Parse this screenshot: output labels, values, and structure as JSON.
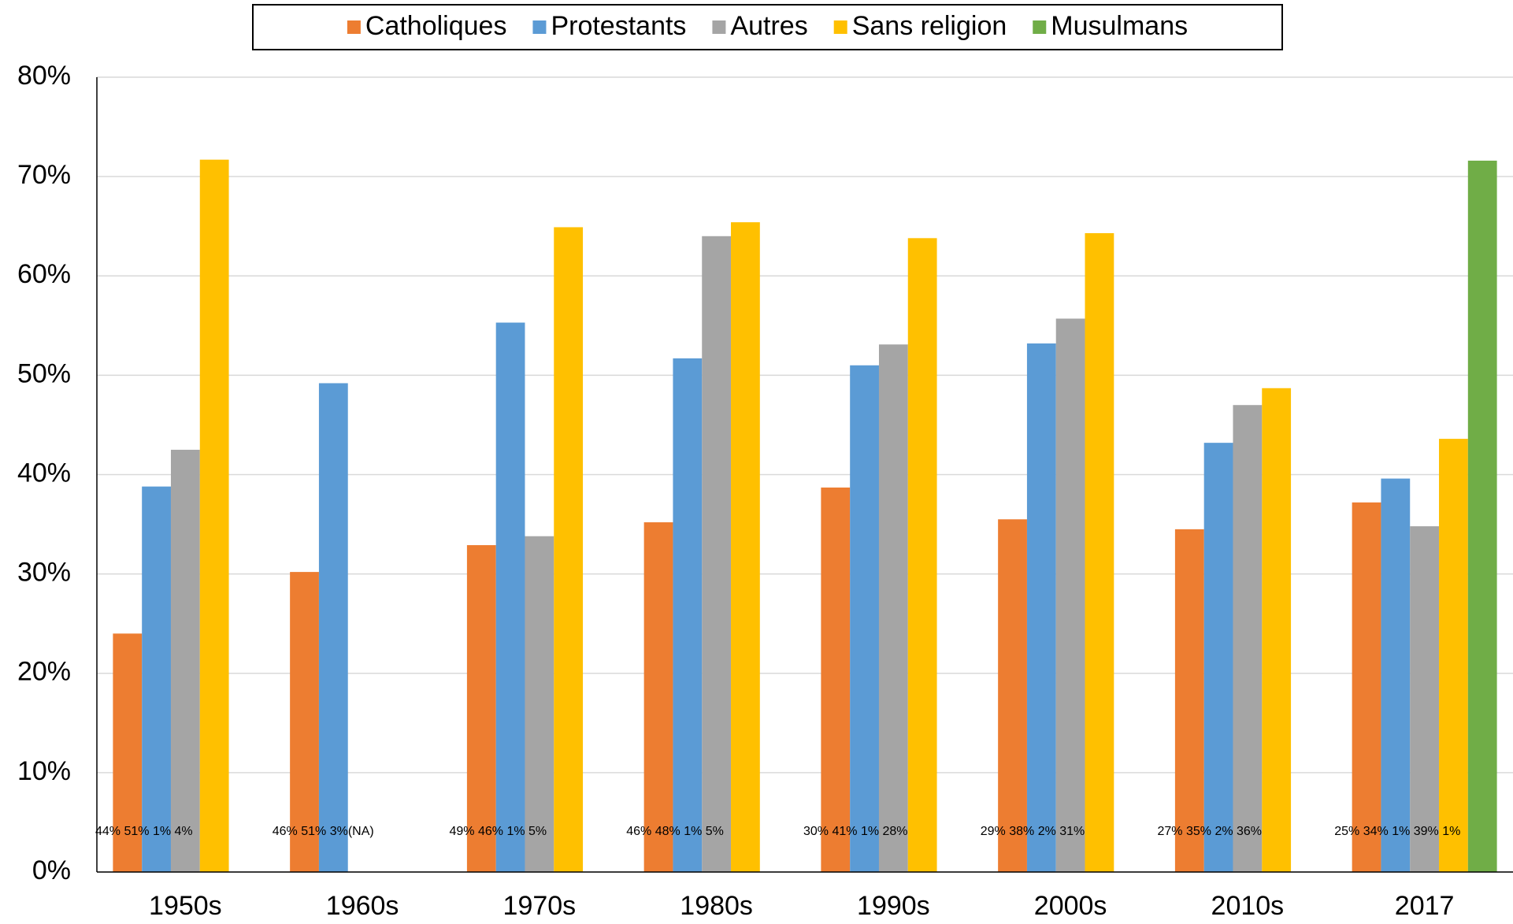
{
  "chart_data": {
    "type": "bar",
    "categories": [
      "1950s",
      "1960s",
      "1970s",
      "1980s",
      "1990s",
      "2000s",
      "2010s",
      "2017"
    ],
    "series": [
      {
        "name": "Catholiques",
        "color": "#ed7d31",
        "values": [
          24.0,
          30.2,
          32.9,
          35.2,
          38.7,
          35.5,
          34.5,
          37.2
        ]
      },
      {
        "name": "Protestants",
        "color": "#5b9bd5",
        "values": [
          38.8,
          49.2,
          55.3,
          51.7,
          51.0,
          53.2,
          43.2,
          39.6
        ]
      },
      {
        "name": "Autres",
        "color": "#a5a5a5",
        "values": [
          42.5,
          null,
          33.8,
          64.0,
          53.1,
          55.7,
          47.0,
          34.8
        ]
      },
      {
        "name": "Sans religion",
        "color": "#ffc000",
        "values": [
          71.7,
          null,
          64.9,
          65.4,
          63.8,
          64.3,
          48.7,
          43.6
        ]
      },
      {
        "name": "Musulmans",
        "color": "#70ad47",
        "values": [
          null,
          null,
          null,
          null,
          null,
          null,
          null,
          71.6
        ]
      }
    ],
    "annotations": [
      "44% 51% 1% 4%",
      "46% 51% 3%(NA)",
      "49% 46% 1%  5%",
      "46% 48% 1%  5%",
      "30% 41% 1% 28%",
      "29% 38% 2% 31%",
      "27% 35% 2% 36%",
      "25% 34% 1% 39% 1%"
    ],
    "ylim": [
      0,
      80
    ],
    "yticks": [
      {
        "value": 0,
        "label": "0%"
      },
      {
        "value": 10,
        "label": "10%"
      },
      {
        "value": 20,
        "label": "20%"
      },
      {
        "value": 30,
        "label": "30%"
      },
      {
        "value": 40,
        "label": "40%"
      },
      {
        "value": 50,
        "label": "50%"
      },
      {
        "value": 60,
        "label": "60%"
      },
      {
        "value": 70,
        "label": "70%"
      },
      {
        "value": 80,
        "label": "80%"
      }
    ],
    "grid": true,
    "legend": "top"
  }
}
